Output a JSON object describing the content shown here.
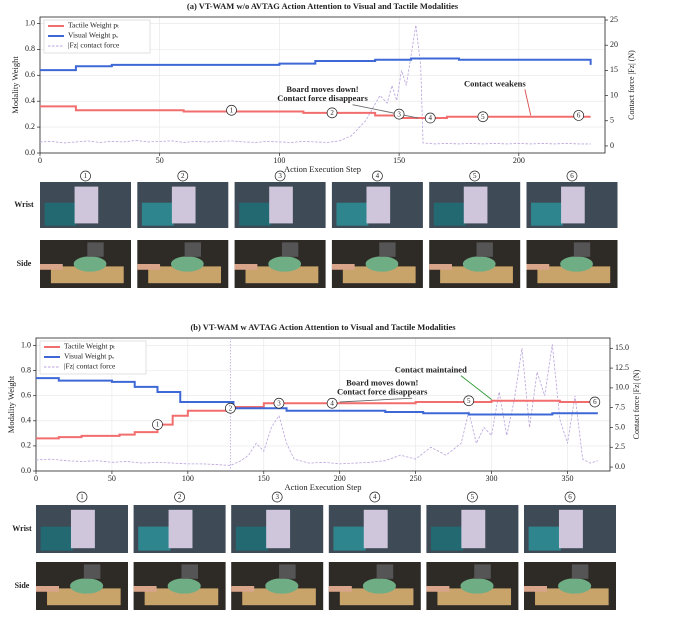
{
  "chart_data": [
    {
      "type": "line",
      "title": "(a) VT-WAM w/o AVTAG Action Attention to Visual and Tactile Modalities",
      "xlabel": "Action Execution Step",
      "ylabel": "Modality Weight",
      "y2label": "Contact force |Fz| (N)",
      "xlim": [
        0,
        236
      ],
      "xticks": [
        0,
        50,
        100,
        150,
        200
      ],
      "ylim": [
        0,
        1.05
      ],
      "yticks": [
        {
          "value": 0,
          "label": "0.0"
        },
        0.2,
        0.4,
        0.6,
        0.8,
        {
          "value": 1,
          "label": "1.0"
        }
      ],
      "y2lim": [
        -1.4,
        25.6
      ],
      "y2ticks": [
        0,
        5,
        10,
        15,
        20,
        25
      ],
      "grid": true,
      "legend": "upper left",
      "series": [
        {
          "name": "Tactile Weight pₜ",
          "color": "#f26d6d",
          "dash": false,
          "x": [
            0,
            15,
            15,
            60,
            60,
            110,
            110,
            140,
            140,
            150,
            150,
            170,
            170,
            230
          ],
          "values": [
            0.36,
            0.36,
            0.33,
            0.33,
            0.32,
            0.32,
            0.31,
            0.31,
            0.29,
            0.29,
            0.27,
            0.27,
            0.28,
            0.28
          ]
        },
        {
          "name": "Visual Weight pᵥ",
          "color": "#3d68d6",
          "dash": false,
          "x": [
            0,
            15,
            15,
            30,
            30,
            100,
            100,
            115,
            115,
            140,
            140,
            155,
            155,
            175,
            175,
            230,
            230
          ],
          "values": [
            0.64,
            0.64,
            0.67,
            0.67,
            0.68,
            0.68,
            0.69,
            0.69,
            0.71,
            0.71,
            0.72,
            0.72,
            0.73,
            0.73,
            0.72,
            0.72,
            0.68
          ]
        },
        {
          "name": "|Fz| contact force",
          "color": "#b9a3dc",
          "dash": true,
          "axis": "y2",
          "x": [
            0,
            5,
            10,
            15,
            20,
            25,
            30,
            35,
            40,
            45,
            50,
            55,
            60,
            65,
            70,
            75,
            80,
            85,
            90,
            95,
            100,
            105,
            110,
            115,
            120,
            125,
            130,
            133,
            136,
            139,
            142,
            145,
            147,
            149,
            151,
            153,
            155,
            156,
            157,
            158,
            159,
            160,
            165,
            170,
            175,
            180,
            185,
            190,
            195,
            200,
            205,
            210,
            215,
            220,
            225,
            230
          ],
          "values": [
            0.8,
            0.9,
            0.6,
            0.8,
            1.0,
            0.7,
            0.9,
            0.8,
            1.1,
            0.8,
            0.9,
            1.0,
            0.7,
            0.9,
            0.8,
            0.9,
            1.0,
            0.8,
            0.7,
            0.9,
            0.8,
            0.7,
            0.9,
            0.8,
            0.7,
            1.0,
            2.0,
            3.5,
            5.0,
            7.5,
            10.0,
            8.5,
            12.0,
            9.0,
            15.0,
            12.0,
            18.0,
            21.0,
            24.0,
            20.0,
            16.0,
            0.6,
            0.4,
            0.5,
            0.4,
            0.5,
            0.4,
            0.5,
            0.4,
            0.5,
            0.4,
            0.5,
            0.4,
            0.5,
            0.4,
            0.4
          ]
        }
      ],
      "markers": [
        {
          "text": "1",
          "x": 80,
          "y": 0.33
        },
        {
          "text": "2",
          "x": 122,
          "y": 0.31
        },
        {
          "text": "3",
          "x": 150,
          "y": 0.3
        },
        {
          "text": "4",
          "x": 163,
          "y": 0.27
        },
        {
          "text": "5",
          "x": 185,
          "y": 0.28
        },
        {
          "text": "6",
          "x": 225,
          "y": 0.29
        }
      ],
      "annotations": [
        {
          "lines": [
            "Board moves down!",
            "Contact force disappears"
          ],
          "x": 118,
          "y": 0.45,
          "color": "#6b6b6b",
          "target": [
            158,
            0.27
          ]
        },
        {
          "lines": [
            "Contact weakens"
          ],
          "x": 190,
          "y": 0.53,
          "color": "#d94a4a",
          "target": [
            205,
            0.29
          ]
        }
      ]
    },
    {
      "type": "line",
      "title": "(b) VT-WAM w AVTAG Action Attention to Visual and Tactile Modalities",
      "xlabel": "Action Execution Step",
      "ylabel": "Modality Weight",
      "y2label": "Contact force |Fz| (N)",
      "xlim": [
        0,
        378
      ],
      "xticks": [
        0,
        50,
        100,
        150,
        200,
        250,
        300,
        350
      ],
      "ylim": [
        0,
        1.06
      ],
      "yticks": [
        {
          "value": 0,
          "label": "0.0"
        },
        0.2,
        0.4,
        0.6,
        0.8,
        {
          "value": 1,
          "label": "1.0"
        }
      ],
      "y2lim": [
        -0.5,
        16.3
      ],
      "y2ticks": [
        {
          "value": 0,
          "label": "0.0"
        },
        2.5,
        {
          "value": 5,
          "label": "5.0"
        },
        7.5,
        {
          "value": 10,
          "label": "10.0"
        },
        12.5,
        {
          "value": 15,
          "label": "15.0"
        }
      ],
      "grid": true,
      "legend": "upper left",
      "vlines": [
        128
      ],
      "series": [
        {
          "name": "Tactile Weight pₜ",
          "color": "#f26d6d",
          "dash": false,
          "x": [
            0,
            15,
            15,
            30,
            30,
            55,
            55,
            65,
            65,
            80,
            80,
            90,
            90,
            100,
            100,
            130,
            130,
            150,
            150,
            250,
            250,
            300,
            300,
            345,
            345,
            370
          ],
          "values": [
            0.26,
            0.26,
            0.27,
            0.27,
            0.28,
            0.28,
            0.29,
            0.29,
            0.31,
            0.31,
            0.37,
            0.37,
            0.44,
            0.44,
            0.48,
            0.48,
            0.51,
            0.51,
            0.54,
            0.54,
            0.55,
            0.55,
            0.56,
            0.56,
            0.55,
            0.55
          ]
        },
        {
          "name": "Visual Weight pᵥ",
          "color": "#3d68d6",
          "dash": false,
          "x": [
            0,
            15,
            15,
            50,
            50,
            65,
            65,
            80,
            80,
            95,
            95,
            130,
            130,
            165,
            165,
            230,
            230,
            255,
            255,
            285,
            285,
            340,
            340,
            370
          ],
          "values": [
            0.74,
            0.74,
            0.72,
            0.72,
            0.71,
            0.71,
            0.67,
            0.67,
            0.63,
            0.63,
            0.55,
            0.55,
            0.5,
            0.5,
            0.48,
            0.48,
            0.47,
            0.47,
            0.46,
            0.46,
            0.45,
            0.45,
            0.46,
            0.46
          ]
        },
        {
          "name": "|Fz| contact force",
          "color": "#b9a3dc",
          "dash": true,
          "axis": "y2",
          "x": [
            0,
            10,
            20,
            30,
            40,
            50,
            60,
            70,
            80,
            90,
            100,
            110,
            120,
            128,
            135,
            140,
            145,
            150,
            155,
            160,
            165,
            170,
            180,
            190,
            200,
            210,
            220,
            230,
            240,
            250,
            260,
            270,
            280,
            285,
            290,
            295,
            300,
            305,
            310,
            315,
            320,
            325,
            330,
            335,
            340,
            345,
            350,
            355,
            360,
            365,
            370
          ],
          "values": [
            0.9,
            1.0,
            0.8,
            0.7,
            0.8,
            0.6,
            0.7,
            0.5,
            0.6,
            0.5,
            0.4,
            0.4,
            0.3,
            0.2,
            0.8,
            1.5,
            3.0,
            2.0,
            5.0,
            6.5,
            3.0,
            1.0,
            0.5,
            0.6,
            0.4,
            0.5,
            0.6,
            0.8,
            1.5,
            1.0,
            2.5,
            1.5,
            3.0,
            7.0,
            3.0,
            5.0,
            4.0,
            9.5,
            4.0,
            8.5,
            15.0,
            5.0,
            12.0,
            9.0,
            15.5,
            6.0,
            3.0,
            9.0,
            1.0,
            0.5,
            0.8
          ]
        }
      ],
      "markers": [
        {
          "text": "1",
          "x": 80,
          "y": 0.37
        },
        {
          "text": "2",
          "x": 128,
          "y": 0.5
        },
        {
          "text": "3",
          "x": 160,
          "y": 0.54
        },
        {
          "text": "4",
          "x": 195,
          "y": 0.54
        },
        {
          "text": "5",
          "x": 285,
          "y": 0.56
        },
        {
          "text": "6",
          "x": 368,
          "y": 0.55
        }
      ],
      "annotations": [
        {
          "lines": [
            "Board moves down!",
            "Contact force disappears"
          ],
          "x": 228,
          "y": 0.66,
          "color": "#6b6b6b",
          "target": [
            200,
            0.55
          ]
        },
        {
          "lines": [
            "Contact maintained"
          ],
          "x": 260,
          "y": 0.8,
          "color": "#2f9a3a",
          "target": [
            300,
            0.57
          ]
        }
      ]
    }
  ],
  "image_strips": [
    {
      "columns": [
        "1",
        "2",
        "3",
        "4",
        "5",
        "6"
      ],
      "rows": [
        "Wrist",
        "Side"
      ]
    },
    {
      "columns": [
        "1",
        "2",
        "3",
        "4",
        "5",
        "6"
      ],
      "rows": [
        "Wrist",
        "Side"
      ]
    }
  ]
}
